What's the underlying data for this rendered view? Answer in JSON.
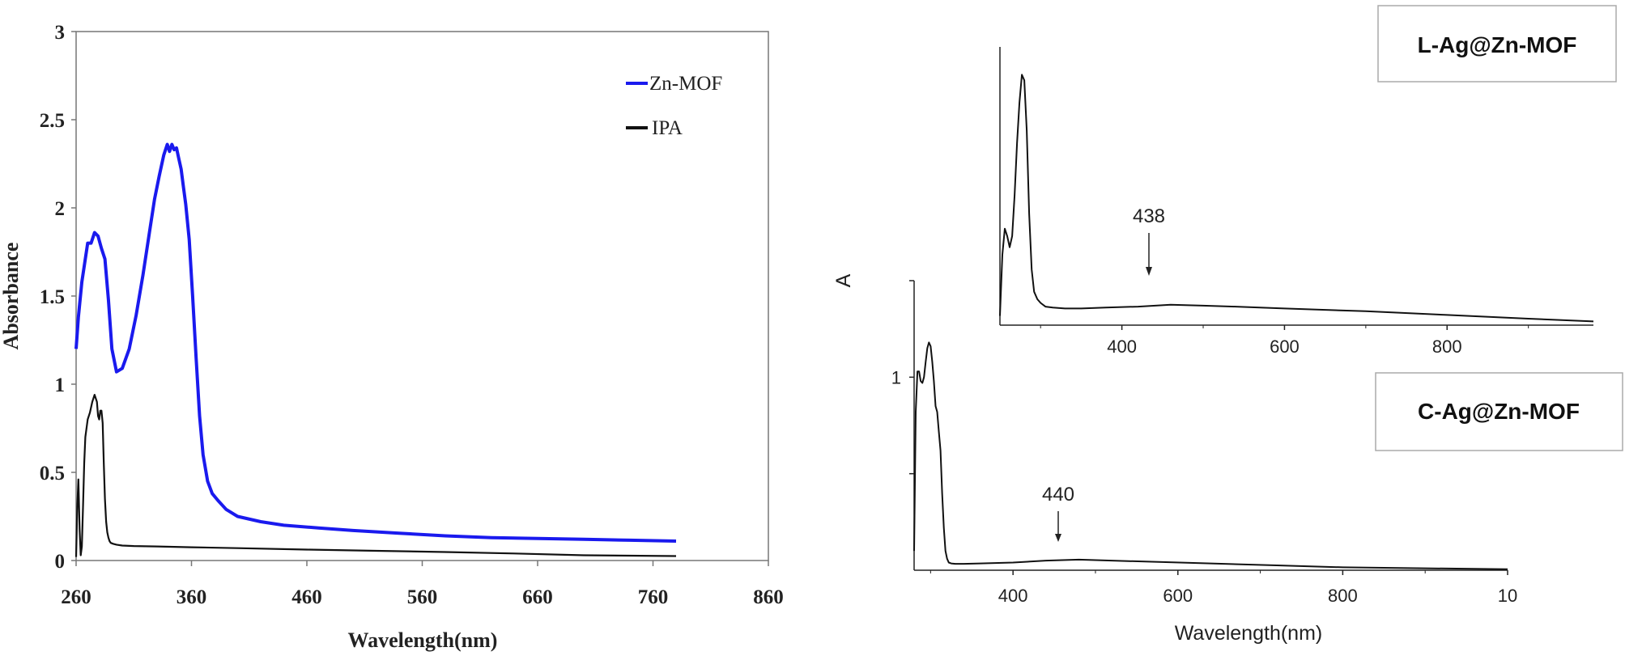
{
  "chart_data": [
    {
      "type": "line",
      "xlabel": "Wavelength(nm)",
      "ylabel": "Absorbance",
      "xlim": [
        260,
        860
      ],
      "ylim": [
        0,
        3
      ],
      "x_ticks": [
        "260",
        "360",
        "460",
        "560",
        "660",
        "760",
        "860"
      ],
      "y_ticks": [
        "0",
        "0.5",
        "1",
        "1.5",
        "2",
        "2.5",
        "3"
      ],
      "legend_position": "top-right",
      "series": [
        {
          "name": "Zn-MOF",
          "color": "#1a1aee",
          "x": [
            260,
            262,
            265,
            270,
            273,
            276,
            279,
            282,
            285,
            288,
            291,
            295,
            300,
            306,
            312,
            318,
            324,
            328,
            332,
            336,
            339,
            341,
            343,
            345,
            347,
            349,
            351,
            353,
            355,
            358,
            361,
            364,
            367,
            370,
            374,
            378,
            383,
            390,
            400,
            420,
            440,
            470,
            500,
            540,
            580,
            620,
            660,
            700,
            740,
            780
          ],
          "values": [
            1.2,
            1.38,
            1.58,
            1.8,
            1.8,
            1.86,
            1.84,
            1.77,
            1.71,
            1.48,
            1.2,
            1.07,
            1.09,
            1.2,
            1.39,
            1.62,
            1.88,
            2.05,
            2.18,
            2.3,
            2.36,
            2.32,
            2.36,
            2.33,
            2.34,
            2.28,
            2.22,
            2.12,
            2.02,
            1.82,
            1.5,
            1.15,
            0.82,
            0.6,
            0.45,
            0.38,
            0.34,
            0.29,
            0.25,
            0.22,
            0.2,
            0.185,
            0.17,
            0.155,
            0.14,
            0.13,
            0.125,
            0.12,
            0.115,
            0.11
          ]
        },
        {
          "name": "IPA",
          "color": "#111111",
          "x": [
            260,
            261,
            262,
            263,
            264,
            265,
            266,
            267,
            268,
            270,
            272,
            274,
            276,
            278,
            279,
            280,
            281,
            282,
            283,
            284,
            285,
            286,
            287,
            288,
            289,
            290,
            292,
            295,
            300,
            310,
            330,
            360,
            400,
            460,
            520,
            580,
            640,
            700,
            780
          ],
          "values": [
            0.02,
            0.3,
            0.46,
            0.18,
            0.03,
            0.08,
            0.3,
            0.55,
            0.7,
            0.8,
            0.84,
            0.9,
            0.94,
            0.9,
            0.82,
            0.8,
            0.85,
            0.85,
            0.78,
            0.55,
            0.35,
            0.22,
            0.16,
            0.13,
            0.11,
            0.1,
            0.095,
            0.09,
            0.085,
            0.082,
            0.08,
            0.075,
            0.07,
            0.062,
            0.055,
            0.048,
            0.04,
            0.03,
            0.025
          ]
        }
      ]
    },
    {
      "type": "line",
      "label": "L-Ag@Zn-MOF",
      "xlabel": "",
      "ylabel": "A",
      "xlim": [
        250,
        980
      ],
      "ylim": [
        0,
        1.5
      ],
      "x_ticks": [
        "400",
        "600",
        "800"
      ],
      "annotations": [
        {
          "text": "438",
          "x": 438
        }
      ],
      "series": [
        {
          "color": "#111111",
          "x": [
            250,
            253,
            256,
            259,
            262,
            265,
            268,
            271,
            274,
            277,
            280,
            283,
            286,
            289,
            292,
            296,
            300,
            306,
            315,
            330,
            350,
            380,
            420,
            460,
            500,
            540,
            600,
            700,
            800,
            900,
            980
          ],
          "values": [
            0.05,
            0.38,
            0.52,
            0.48,
            0.42,
            0.48,
            0.7,
            0.98,
            1.2,
            1.35,
            1.32,
            1.05,
            0.6,
            0.3,
            0.18,
            0.14,
            0.12,
            0.1,
            0.095,
            0.09,
            0.09,
            0.095,
            0.1,
            0.11,
            0.105,
            0.1,
            0.09,
            0.075,
            0.055,
            0.035,
            0.02
          ]
        }
      ]
    },
    {
      "type": "line",
      "label": "C-Ag@Zn-MOF",
      "xlabel": "Wavelength(nm)",
      "ylabel": "",
      "xlim": [
        280,
        1000
      ],
      "ylim": [
        0,
        1.5
      ],
      "x_ticks": [
        "400",
        "600",
        "800",
        "10"
      ],
      "y_ticks": [
        "1"
      ],
      "annotations": [
        {
          "text": "440",
          "x": 440
        }
      ],
      "series": [
        {
          "color": "#111111",
          "x": [
            280,
            282,
            284,
            286,
            288,
            290,
            292,
            294,
            296,
            298,
            300,
            302,
            304,
            306,
            308,
            310,
            312,
            314,
            316,
            318,
            320,
            322,
            325,
            330,
            340,
            360,
            400,
            440,
            480,
            520,
            560,
            640,
            720,
            800,
            900,
            1000
          ],
          "values": [
            0.1,
            0.82,
            1.03,
            1.03,
            0.98,
            0.97,
            1.0,
            1.08,
            1.15,
            1.18,
            1.16,
            1.08,
            0.98,
            0.85,
            0.82,
            0.72,
            0.62,
            0.4,
            0.22,
            0.1,
            0.06,
            0.04,
            0.035,
            0.033,
            0.033,
            0.035,
            0.04,
            0.05,
            0.055,
            0.05,
            0.045,
            0.035,
            0.025,
            0.015,
            0.01,
            0.005
          ]
        }
      ]
    }
  ]
}
